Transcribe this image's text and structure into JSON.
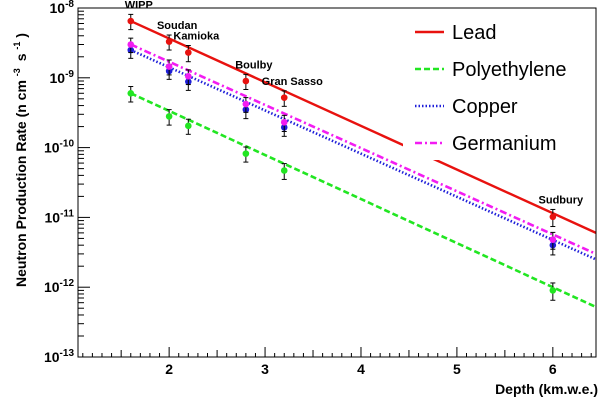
{
  "chart_data": {
    "type": "line",
    "x_scale": "linear",
    "y_scale": "log",
    "xlabel": "Depth (km.w.e.)",
    "ylabel": "Neutron Production Rate (n cm",
    "ylabel_unit_tail": "s",
    "ylabel_exp1": "-3",
    "ylabel_exp2": "-1",
    "ylabel_close": ")",
    "xlim": [
      1.05,
      6.45
    ],
    "ylim": [
      1e-13,
      1e-08
    ],
    "x_ticks": [
      2,
      3,
      4,
      5,
      6
    ],
    "x_tick_labels": [
      "2",
      "3",
      "4",
      "5",
      "6"
    ],
    "y_ticks": [
      1e-13,
      1e-12,
      1e-11,
      1e-10,
      1e-09,
      1e-08
    ],
    "y_tick_labels": [
      {
        "base": "10",
        "exp": "-13"
      },
      {
        "base": "10",
        "exp": "-12"
      },
      {
        "base": "10",
        "exp": "-11"
      },
      {
        "base": "10",
        "exp": "-10"
      },
      {
        "base": "10",
        "exp": "-9"
      },
      {
        "base": "10",
        "exp": "-8"
      }
    ],
    "grid": false,
    "legend_position": "top-right",
    "site_labels": [
      {
        "text": "WIPP",
        "x": 1.6
      },
      {
        "text": "Soudan",
        "x": 2.0
      },
      {
        "text": "Kamioka",
        "x": 2.2
      },
      {
        "text": "Boulby",
        "x": 2.8
      },
      {
        "text": "Gran Sasso",
        "x": 3.2
      },
      {
        "text": "Sudbury",
        "x": 6.0
      }
    ],
    "series": [
      {
        "name": "Lead",
        "color": "#e8120f",
        "line_style": "solid",
        "fit": {
          "x": [
            1.6,
            6.45
          ],
          "y": [
            6.5e-09,
            6e-12
          ]
        },
        "points": {
          "x": [
            1.6,
            2.0,
            2.2,
            2.8,
            3.2,
            6.0
          ],
          "y": [
            6.5e-09,
            3.3e-09,
            2.3e-09,
            9e-10,
            5.2e-10,
            1.02e-11
          ],
          "err_up": [
            1.6e-09,
            8e-10,
            6e-10,
            2.2e-10,
            1.3e-10,
            2.8e-12
          ]
        }
      },
      {
        "name": "Polyethylene",
        "color": "#22e622",
        "line_style": "dashed",
        "fit": {
          "x": [
            1.6,
            6.45
          ],
          "y": [
            6e-10,
            5.2e-13
          ]
        },
        "points": {
          "x": [
            1.6,
            2.0,
            2.2,
            2.8,
            3.2,
            6.0
          ],
          "y": [
            6e-10,
            2.8e-10,
            2.05e-10,
            8.2e-11,
            4.7e-11,
            9e-13
          ],
          "err_up": [
            1.5e-10,
            7e-11,
            5e-11,
            2e-11,
            1.2e-11,
            2.5e-13
          ]
        }
      },
      {
        "name": "Copper",
        "color": "#1f1fd9",
        "line_style": "dotted",
        "fit": {
          "x": [
            1.6,
            6.45
          ],
          "y": [
            2.5e-09,
            2.5e-12
          ]
        },
        "points": {
          "x": [
            1.6,
            2.0,
            2.2,
            2.8,
            3.2,
            6.0
          ],
          "y": [
            2.5e-09,
            1.25e-09,
            8.8e-10,
            3.5e-10,
            1.95e-10,
            4e-12
          ],
          "err_up": [
            6e-10,
            3e-10,
            2.2e-10,
            9e-11,
            5e-11,
            1.1e-12
          ]
        }
      },
      {
        "name": "Germanium",
        "color": "#f21cf2",
        "line_style": "dashdot",
        "fit": {
          "x": [
            1.6,
            6.45
          ],
          "y": [
            3e-09,
            3e-12
          ]
        },
        "points": {
          "x": [
            1.6,
            2.0,
            2.2,
            2.8,
            3.2,
            6.0
          ],
          "y": [
            3e-09,
            1.45e-09,
            1.05e-09,
            4.2e-10,
            2.3e-10,
            4.8e-12
          ],
          "err_up": [
            7e-10,
            3.5e-10,
            2.5e-10,
            1e-10,
            6e-11,
            1.3e-12
          ]
        }
      }
    ]
  }
}
